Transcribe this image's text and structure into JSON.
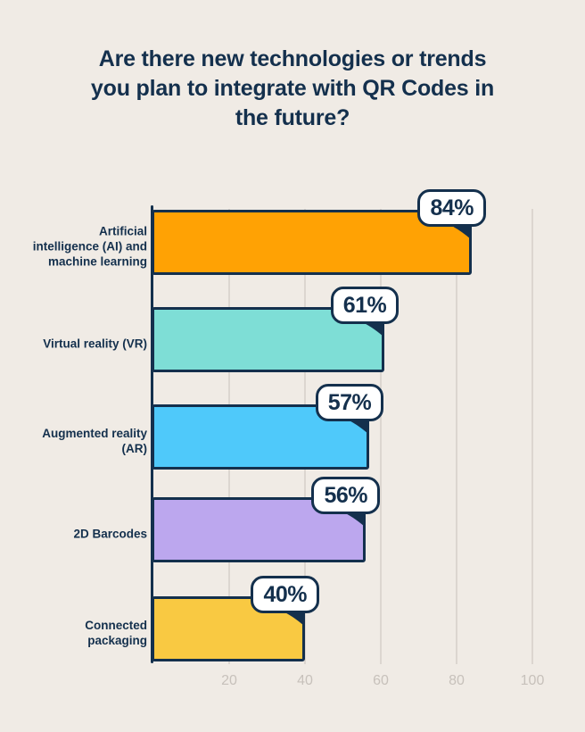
{
  "title": "Are there new technologies or trends\nyou plan to integrate with QR Codes in\nthe future?",
  "colors": {
    "background": "#F0EBE5",
    "navy": "#14304D",
    "bubble_background": "#FFFFFF",
    "gridline": "#DCD6D0",
    "tick_label": "#C7C1BB"
  },
  "chart_data": {
    "type": "bar",
    "orientation": "horizontal",
    "title": "Are there new technologies or trends you plan to integrate with QR Codes in the future?",
    "xlabel": "",
    "ylabel": "",
    "xlim": [
      0,
      108
    ],
    "x_ticks": [
      20,
      40,
      60,
      80,
      100
    ],
    "grid": true,
    "categories": [
      "Artificial intelligence (AI) and machine learning",
      "Virtual reality (VR)",
      "Augmented reality (AR)",
      "2D Barcodes",
      "Connected packaging"
    ],
    "values": [
      84,
      61,
      57,
      56,
      40
    ],
    "rows": [
      {
        "label": "Artificial\nintelligence (AI) and\nmachine learning",
        "value": 84,
        "value_label": "84%",
        "color": "#FFA204"
      },
      {
        "label": "Virtual reality (VR)",
        "value": 61,
        "value_label": "61%",
        "color": "#7EDED6"
      },
      {
        "label": "Augmented reality\n(AR)",
        "value": 57,
        "value_label": "57%",
        "color": "#4FC9FA"
      },
      {
        "label": "2D Barcodes",
        "value": 56,
        "value_label": "56%",
        "color": "#BCA7EE"
      },
      {
        "label": "Connected\npackaging",
        "value": 40,
        "value_label": "40%",
        "color": "#F9C942"
      }
    ]
  }
}
